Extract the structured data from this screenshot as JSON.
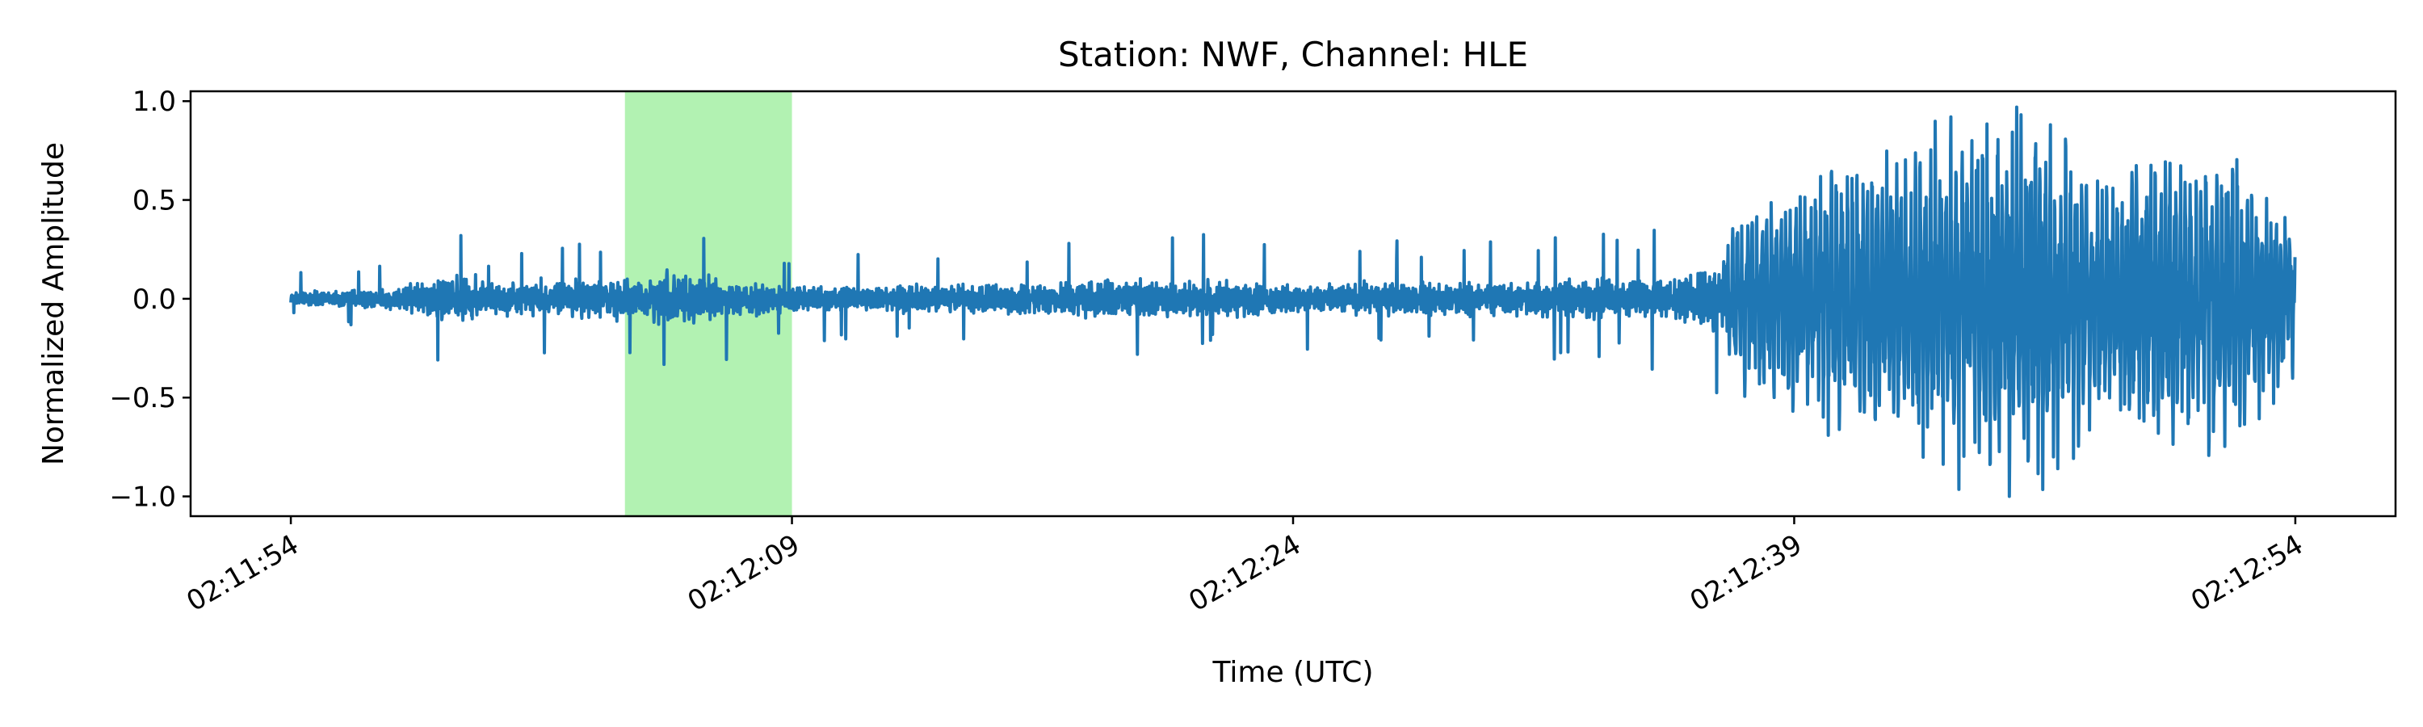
{
  "chart_data": {
    "type": "line",
    "title": "Station: NWF, Channel: HLE",
    "xlabel": "Time (UTC)",
    "ylabel": "Normalized Amplitude",
    "x_range": [
      "02:11:54",
      "02:12:54"
    ],
    "xlim": [
      "02:11:51",
      "02:12:57"
    ],
    "ylim": [
      -1.1,
      1.05
    ],
    "x_ticks": [
      "02:11:54",
      "02:12:09",
      "02:12:24",
      "02:12:39",
      "02:12:54"
    ],
    "y_ticks": [
      1.0,
      0.5,
      0.0,
      -0.5,
      -1.0
    ],
    "y_tick_labels": [
      "1.0",
      "0.5",
      "0.0",
      "−0.5",
      "−1.0"
    ],
    "highlight_window": {
      "start": "02:12:04",
      "end": "02:12:09",
      "color": "#b2f2b2"
    },
    "grid": false,
    "legend": "none",
    "series": [
      {
        "color": "#1f77b4",
        "sample_rate_hz": 100,
        "amplitude_envelope": [
          [
            "02:11:54",
            0.06
          ],
          [
            "02:11:57",
            0.1
          ],
          [
            "02:11:59",
            0.25
          ],
          [
            "02:12:00",
            0.15
          ],
          [
            "02:12:03",
            0.18
          ],
          [
            "02:12:05",
            0.25
          ],
          [
            "02:12:09",
            0.12
          ],
          [
            "02:12:15",
            0.14
          ],
          [
            "02:12:19",
            0.2
          ],
          [
            "02:12:24",
            0.14
          ],
          [
            "02:12:30",
            0.16
          ],
          [
            "02:12:35",
            0.2
          ],
          [
            "02:12:38",
            0.5
          ],
          [
            "02:12:40",
            0.65
          ],
          [
            "02:12:44",
            0.85
          ],
          [
            "02:12:46",
            0.95
          ],
          [
            "02:12:48",
            0.65
          ],
          [
            "02:12:52",
            0.75
          ],
          [
            "02:12:54",
            0.35
          ]
        ]
      }
    ]
  }
}
